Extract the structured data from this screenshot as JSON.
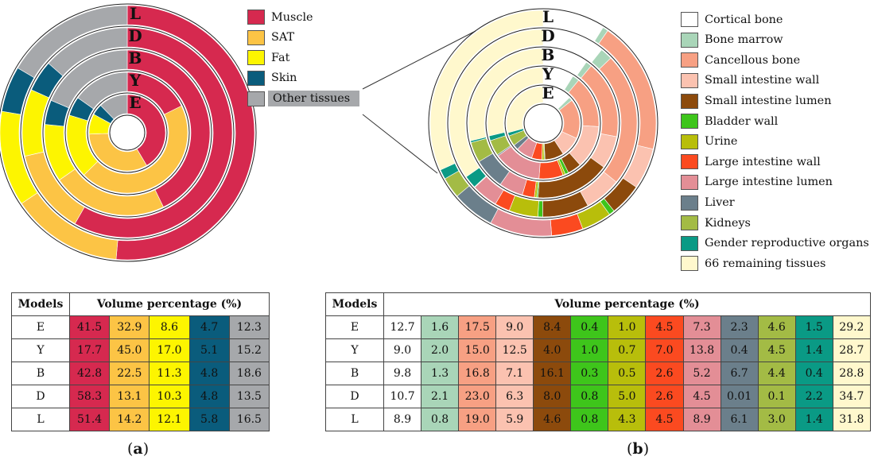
{
  "chart_data": [
    {
      "type": "donut",
      "panel": "a",
      "ring_order_inner_to_outer": [
        "E",
        "Y",
        "B",
        "D",
        "L"
      ],
      "categories": [
        "Muscle",
        "SAT",
        "Fat",
        "Skin",
        "Other tissues"
      ],
      "colors": [
        "#d6294f",
        "#fcc445",
        "#fdf500",
        "#0a5c7c",
        "#a6a8ab"
      ],
      "series": [
        {
          "name": "E",
          "values": [
            41.5,
            32.9,
            8.6,
            4.7,
            12.3
          ]
        },
        {
          "name": "Y",
          "values": [
            17.7,
            45.0,
            17.0,
            5.1,
            15.2
          ]
        },
        {
          "name": "B",
          "values": [
            42.8,
            22.5,
            11.3,
            4.8,
            18.6
          ]
        },
        {
          "name": "D",
          "values": [
            58.3,
            13.1,
            10.3,
            4.8,
            13.5
          ]
        },
        {
          "name": "L",
          "values": [
            51.4,
            14.2,
            12.1,
            5.8,
            16.5
          ]
        }
      ],
      "legend_placement": "right"
    },
    {
      "type": "donut",
      "panel": "b",
      "ring_order_inner_to_outer": [
        "E",
        "Y",
        "B",
        "D",
        "L"
      ],
      "categories": [
        "Cortical bone",
        "Bone marrow",
        "Cancellous bone",
        "Small intestine wall",
        "Small intestine lumen",
        "Bladder wall",
        "Urine",
        "Large intestine wall",
        "Large intestine lumen",
        "Liver",
        "Kidneys",
        "Gender reproductive organs",
        "66 remaining tissues"
      ],
      "colors": [
        "#ffffff",
        "#a9d5b8",
        "#f7a083",
        "#fbc2b0",
        "#8c4a0c",
        "#3ec51b",
        "#b8be0b",
        "#fb4a20",
        "#e38e96",
        "#6b7f8b",
        "#a3bb45",
        "#0a9a85",
        "#fff8cd"
      ],
      "series": [
        {
          "name": "E",
          "values": [
            12.7,
            1.6,
            17.5,
            9.0,
            8.4,
            0.4,
            1.0,
            4.5,
            7.3,
            2.3,
            4.6,
            1.5,
            29.2
          ]
        },
        {
          "name": "Y",
          "values": [
            9.0,
            2.0,
            15.0,
            12.5,
            4.0,
            1.0,
            0.7,
            7.0,
            13.8,
            0.4,
            4.5,
            1.4,
            28.7
          ]
        },
        {
          "name": "B",
          "values": [
            9.8,
            1.3,
            16.8,
            7.1,
            16.1,
            0.3,
            0.5,
            2.6,
            5.2,
            6.7,
            4.4,
            0.4,
            28.8
          ]
        },
        {
          "name": "D",
          "values": [
            10.7,
            2.1,
            23.0,
            6.3,
            8.0,
            0.8,
            5.0,
            2.6,
            4.5,
            0.01,
            0.1,
            2.2,
            34.7
          ]
        },
        {
          "name": "L",
          "values": [
            8.9,
            0.8,
            19.0,
            5.9,
            4.6,
            0.8,
            4.3,
            4.5,
            8.9,
            6.1,
            3.0,
            1.4,
            31.8
          ]
        }
      ],
      "legend_placement": "right"
    }
  ],
  "tables": {
    "a": {
      "header_models": "Models",
      "header_volume": "Volume percentage (%)",
      "rows": [
        {
          "model": "E",
          "cells": [
            "41.5",
            "32.9",
            "8.6",
            "4.7",
            "12.3"
          ]
        },
        {
          "model": "Y",
          "cells": [
            "17.7",
            "45.0",
            "17.0",
            "5.1",
            "15.2"
          ]
        },
        {
          "model": "B",
          "cells": [
            "42.8",
            "22.5",
            "11.3",
            "4.8",
            "18.6"
          ]
        },
        {
          "model": "D",
          "cells": [
            "58.3",
            "13.1",
            "10.3",
            "4.8",
            "13.5"
          ]
        },
        {
          "model": "L",
          "cells": [
            "51.4",
            "14.2",
            "12.1",
            "5.8",
            "16.5"
          ]
        }
      ]
    },
    "b": {
      "header_models": "Models",
      "header_volume": "Volume percentage (%)",
      "rows": [
        {
          "model": "E",
          "cells": [
            "12.7",
            "1.6",
            "17.5",
            "9.0",
            "8.4",
            "0.4",
            "1.0",
            "4.5",
            "7.3",
            "2.3",
            "4.6",
            "1.5",
            "29.2"
          ]
        },
        {
          "model": "Y",
          "cells": [
            "9.0",
            "2.0",
            "15.0",
            "12.5",
            "4.0",
            "1.0",
            "0.7",
            "7.0",
            "13.8",
            "0.4",
            "4.5",
            "1.4",
            "28.7"
          ]
        },
        {
          "model": "B",
          "cells": [
            "9.8",
            "1.3",
            "16.8",
            "7.1",
            "16.1",
            "0.3",
            "0.5",
            "2.6",
            "5.2",
            "6.7",
            "4.4",
            "0.4",
            "28.8"
          ]
        },
        {
          "model": "D",
          "cells": [
            "10.7",
            "2.1",
            "23.0",
            "6.3",
            "8.0",
            "0.8",
            "5.0",
            "2.6",
            "4.5",
            "0.01",
            "0.1",
            "2.2",
            "34.7"
          ]
        },
        {
          "model": "L",
          "cells": [
            "8.9",
            "0.8",
            "19.0",
            "5.9",
            "4.6",
            "0.8",
            "4.3",
            "4.5",
            "8.9",
            "6.1",
            "3.0",
            "1.4",
            "31.8"
          ]
        }
      ]
    }
  },
  "panel_labels": {
    "a": [
      "(",
      "a",
      ")"
    ],
    "b": [
      "(",
      "b",
      ")"
    ]
  }
}
